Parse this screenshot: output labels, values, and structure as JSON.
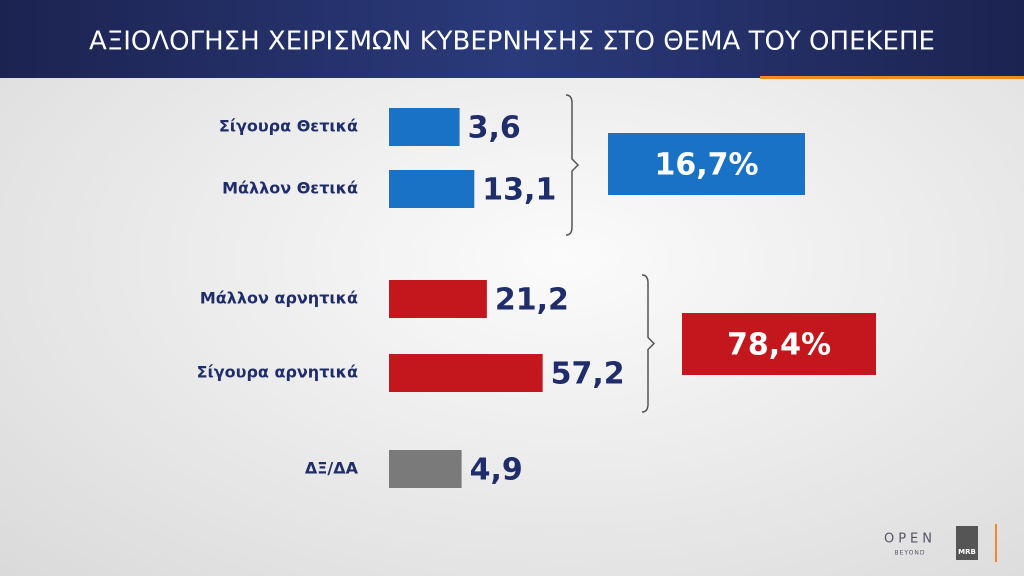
{
  "chart_data": {
    "type": "bar",
    "title": "ΑΞΙΟΛΟΓΗΣΗ ΧΕΙΡΙΣΜΩΝ ΚΥΒΕΡΝΗΣΗΣ ΣΤΟ ΘΕΜΑ ΤΟΥ ΟΠΕΚΕΠΕ",
    "categories": [
      "Σίγουρα Θετικά",
      "Μάλλον Θετικά",
      "Μάλλον αρνητικά",
      "Σίγουρα αρνητικά",
      "ΔΞ/ΔΑ"
    ],
    "values": [
      3.6,
      13.1,
      21.2,
      57.2,
      4.9
    ],
    "value_labels": [
      "3,6",
      "13,1",
      "21,2",
      "57,2",
      "4,9"
    ],
    "colors": [
      "#1a72c6",
      "#1a72c6",
      "#c3161d",
      "#c3161d",
      "#7a7a7a"
    ],
    "groups": [
      {
        "total": 16.7,
        "label": "16,7%",
        "color": "#1a72c6"
      },
      {
        "total": 78.4,
        "label": "78,4%",
        "color": "#c3161d"
      }
    ]
  },
  "logos": {
    "brand": "OPEN",
    "tagline": "BEYOND",
    "pollster": "MRB"
  }
}
